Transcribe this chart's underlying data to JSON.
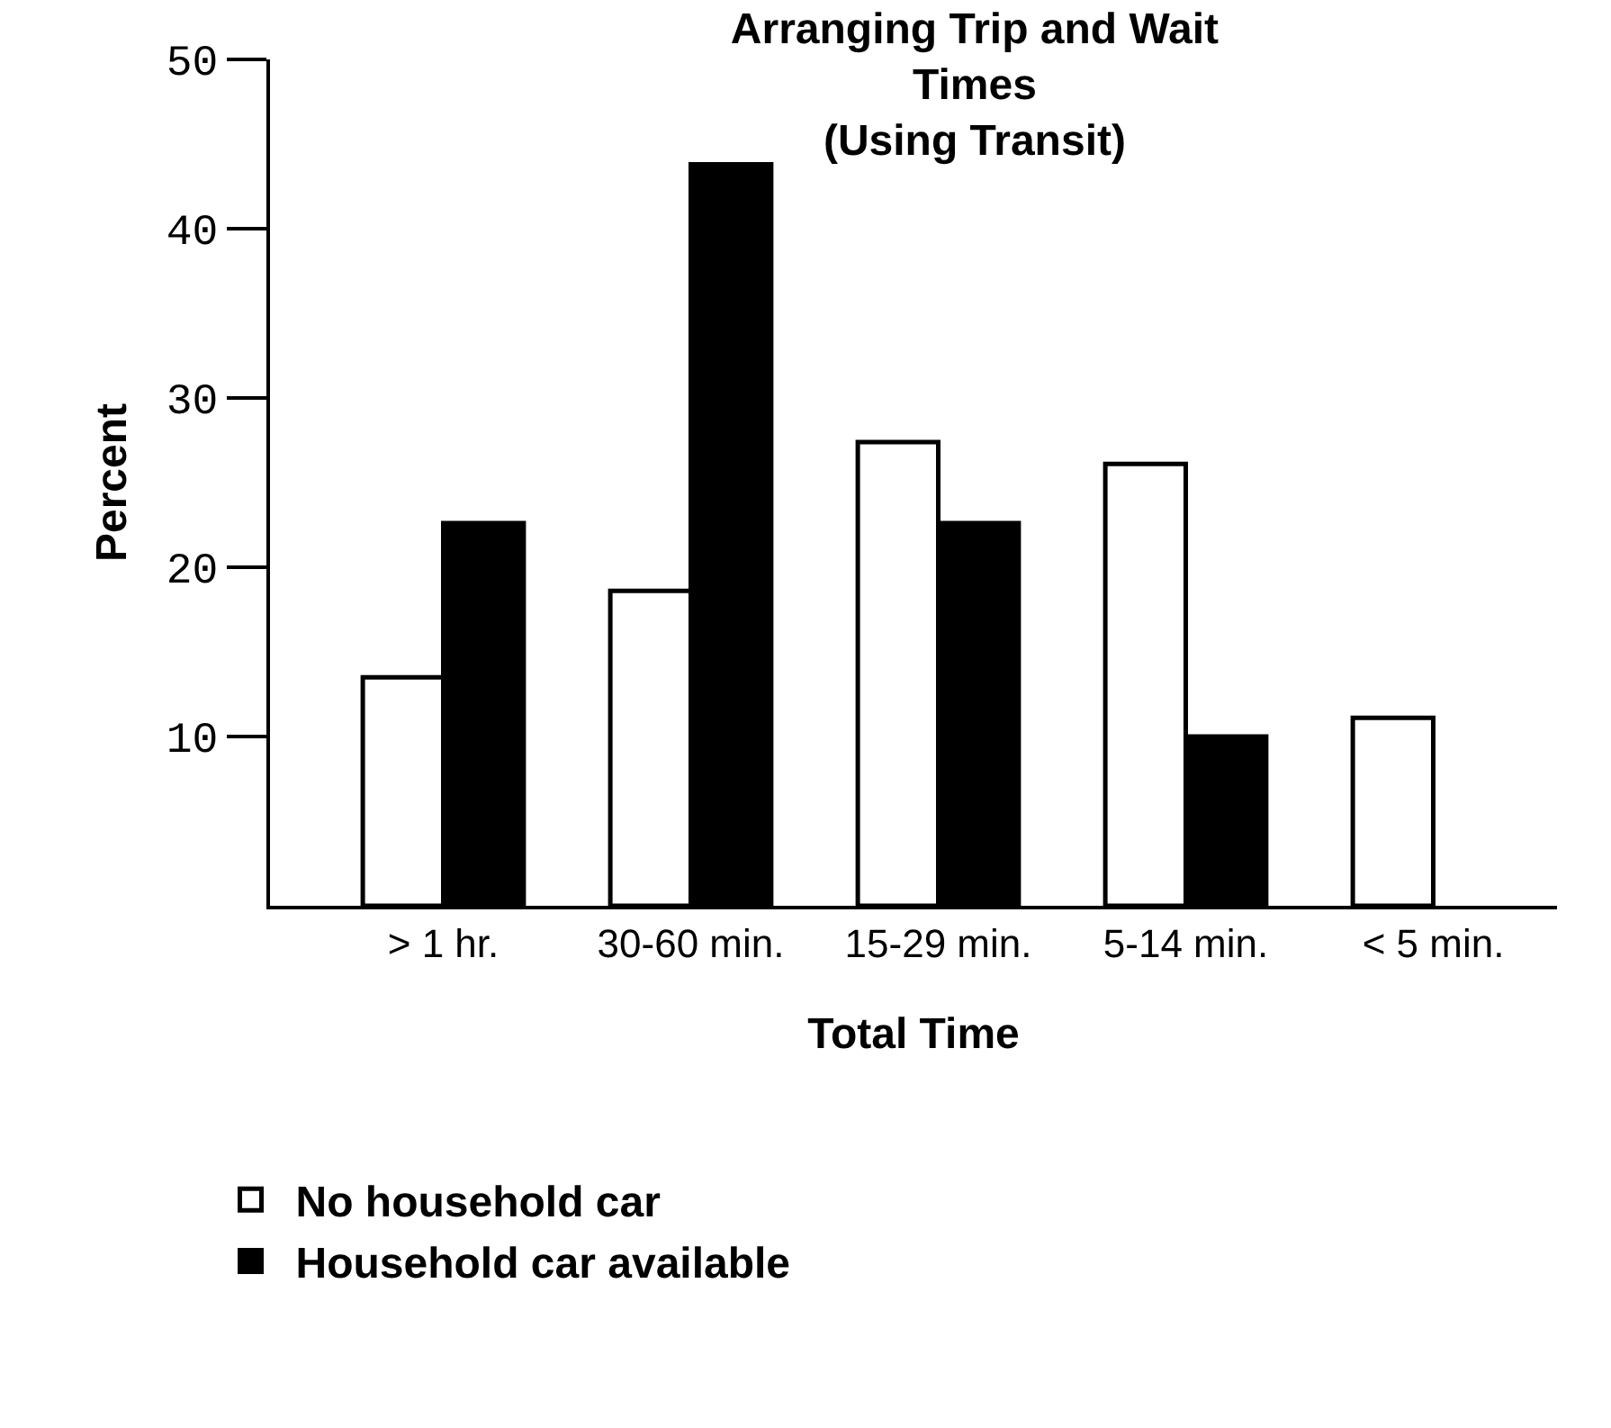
{
  "chart_data": {
    "type": "bar",
    "title": "Arranging Trip and Wait\nTimes\n(Using Transit)",
    "xlabel": "Total Time",
    "ylabel": "Percent",
    "categories": [
      "> 1 hr.",
      "30-60 min.",
      "15-29 min.",
      "5-14 min.",
      "< 5 min."
    ],
    "series": [
      {
        "name": "No household car",
        "color": "#ffffff",
        "values": [
          13.5,
          18.6,
          27.4,
          26.1,
          11.1
        ]
      },
      {
        "name": "Household car available",
        "color": "#000000",
        "values": [
          22.6,
          43.8,
          22.6,
          10.0,
          null
        ]
      }
    ],
    "ylim": [
      0,
      50
    ],
    "yticks": [
      10,
      20,
      30,
      40,
      50
    ],
    "legend": "bottom left"
  }
}
